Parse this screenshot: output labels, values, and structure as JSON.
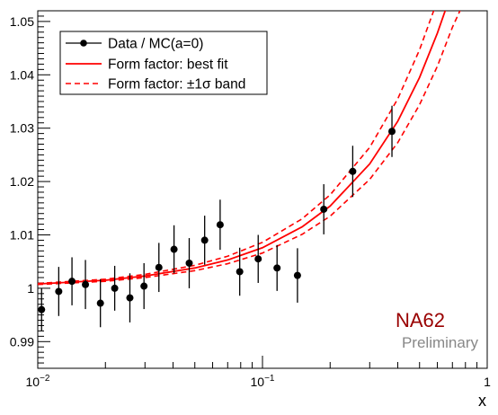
{
  "chart_data": {
    "type": "scatter",
    "xlabel": "x",
    "ylabel": "",
    "xscale": "log",
    "xlim": [
      0.01,
      1
    ],
    "ylim": [
      0.985,
      1.052
    ],
    "x_ticks": [
      {
        "value": 0.01,
        "base": "10",
        "exp": "−2"
      },
      {
        "value": 0.1,
        "base": "10",
        "exp": "−1"
      },
      {
        "value": 1,
        "base": "1",
        "exp": ""
      }
    ],
    "y_ticks": [
      "0.99",
      "1",
      "1.01",
      "1.02",
      "1.03",
      "1.04",
      "1.05"
    ],
    "colors": {
      "data": "#000000",
      "fit": "#ff0000",
      "note_main": "#990000",
      "note_sub": "#888888"
    },
    "legend": {
      "placement": "top-left",
      "entries": [
        {
          "label": "Data / MC(a=0)",
          "style": "marker-errorbar"
        },
        {
          "label": "Form factor: best fit",
          "style": "solid-red"
        },
        {
          "label": "Form factor: ±1σ band",
          "style": "dashed-red"
        }
      ]
    },
    "annotation": {
      "main": "NA62",
      "sub": "Preliminary"
    },
    "series": [
      {
        "name": "Data / MC(a=0)",
        "points": [
          {
            "x": 0.0104,
            "y": 0.996,
            "err": 0.004
          },
          {
            "x": 0.0124,
            "y": 0.9994,
            "err": 0.0046
          },
          {
            "x": 0.0142,
            "y": 1.0013,
            "err": 0.0045
          },
          {
            "x": 0.0163,
            "y": 1.0007,
            "err": 0.0046
          },
          {
            "x": 0.019,
            "y": 0.9972,
            "err": 0.0045
          },
          {
            "x": 0.022,
            "y": 1.0,
            "err": 0.0042
          },
          {
            "x": 0.0257,
            "y": 0.9982,
            "err": 0.0046
          },
          {
            "x": 0.0297,
            "y": 1.0004,
            "err": 0.0043
          },
          {
            "x": 0.0346,
            "y": 1.0039,
            "err": 0.0046
          },
          {
            "x": 0.0404,
            "y": 1.0073,
            "err": 0.0045
          },
          {
            "x": 0.0472,
            "y": 1.0047,
            "err": 0.0047
          },
          {
            "x": 0.0553,
            "y": 1.009,
            "err": 0.0046
          },
          {
            "x": 0.0648,
            "y": 1.0119,
            "err": 0.0047
          },
          {
            "x": 0.0792,
            "y": 1.0031,
            "err": 0.0045
          },
          {
            "x": 0.0957,
            "y": 1.0055,
            "err": 0.0045
          },
          {
            "x": 0.1161,
            "y": 1.0038,
            "err": 0.0043
          },
          {
            "x": 0.1431,
            "y": 1.0024,
            "err": 0.0051
          },
          {
            "x": 0.1874,
            "y": 1.0148,
            "err": 0.0047
          },
          {
            "x": 0.2521,
            "y": 1.0219,
            "err": 0.0048
          },
          {
            "x": 0.3768,
            "y": 1.0294,
            "err": 0.0048
          }
        ]
      },
      {
        "name": "Form factor: best fit",
        "curve": [
          {
            "x": 0.01,
            "y": 1.0008
          },
          {
            "x": 0.02,
            "y": 1.0015
          },
          {
            "x": 0.03,
            "y": 1.0023
          },
          {
            "x": 0.05,
            "y": 1.0038
          },
          {
            "x": 0.07,
            "y": 1.0053
          },
          {
            "x": 0.1,
            "y": 1.0076
          },
          {
            "x": 0.15,
            "y": 1.0115
          },
          {
            "x": 0.2,
            "y": 1.0154
          },
          {
            "x": 0.3,
            "y": 1.0233
          },
          {
            "x": 0.4,
            "y": 1.0313
          },
          {
            "x": 0.5,
            "y": 1.0395
          },
          {
            "x": 0.6,
            "y": 1.0478
          },
          {
            "x": 0.65,
            "y": 1.052
          },
          {
            "x": 0.7,
            "y": 1.0563
          }
        ]
      },
      {
        "name": "Form factor: ±1σ band (upper)",
        "curve": [
          {
            "x": 0.01,
            "y": 1.0009
          },
          {
            "x": 0.02,
            "y": 1.0017
          },
          {
            "x": 0.03,
            "y": 1.0026
          },
          {
            "x": 0.05,
            "y": 1.0043
          },
          {
            "x": 0.07,
            "y": 1.006
          },
          {
            "x": 0.1,
            "y": 1.0086
          },
          {
            "x": 0.15,
            "y": 1.013
          },
          {
            "x": 0.2,
            "y": 1.0175
          },
          {
            "x": 0.3,
            "y": 1.0264
          },
          {
            "x": 0.4,
            "y": 1.0355
          },
          {
            "x": 0.5,
            "y": 1.0447
          },
          {
            "x": 0.58,
            "y": 1.0522
          },
          {
            "x": 0.62,
            "y": 1.056
          }
        ]
      },
      {
        "name": "Form factor: ±1σ band (lower)",
        "curve": [
          {
            "x": 0.01,
            "y": 1.0007
          },
          {
            "x": 0.02,
            "y": 1.0013
          },
          {
            "x": 0.03,
            "y": 1.002
          },
          {
            "x": 0.05,
            "y": 1.0033
          },
          {
            "x": 0.07,
            "y": 1.0046
          },
          {
            "x": 0.1,
            "y": 1.0066
          },
          {
            "x": 0.15,
            "y": 1.0101
          },
          {
            "x": 0.2,
            "y": 1.0135
          },
          {
            "x": 0.3,
            "y": 1.0204
          },
          {
            "x": 0.4,
            "y": 1.0273
          },
          {
            "x": 0.5,
            "y": 1.0344
          },
          {
            "x": 0.6,
            "y": 1.0416
          },
          {
            "x": 0.7,
            "y": 1.0489
          },
          {
            "x": 0.76,
            "y": 1.0522
          },
          {
            "x": 0.8,
            "y": 1.056
          }
        ]
      }
    ]
  }
}
